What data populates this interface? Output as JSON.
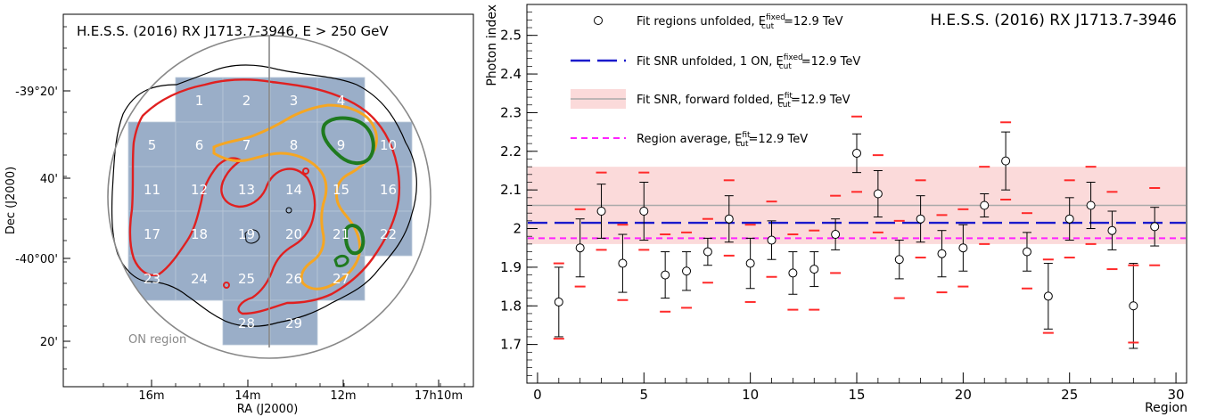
{
  "chart_data": [
    {
      "type": "heatmap",
      "title": "H.E.S.S. (2016) RX J1713.7-3946, E > 250 GeV",
      "xlabel": "RA (J2000)",
      "ylabel": "Dec (J2000)",
      "x_ticks": [
        "16m",
        "14m",
        "12m",
        "17h10m"
      ],
      "y_ticks": [
        "-39°20'",
        "40'",
        "-40°00'",
        "20'"
      ],
      "annotation": "ON region",
      "region_labels": [
        "1",
        "2",
        "3",
        "4",
        "5",
        "6",
        "7",
        "8",
        "9",
        "10",
        "11",
        "12",
        "13",
        "14",
        "15",
        "16",
        "17",
        "18",
        "19",
        "20",
        "21",
        "22",
        "23",
        "24",
        "25",
        "26",
        "27",
        "28",
        "29"
      ],
      "colors": {
        "regions": "#9aaec8",
        "red_contour": "#e02020",
        "orange_contour": "#f5a623",
        "green_contour": "#1f7a1f",
        "outer_contour": "#000000",
        "on_region": "#888888"
      }
    },
    {
      "type": "scatter",
      "title": "H.E.S.S. (2016) RX J1713.7-3946",
      "xlabel": "Region",
      "ylabel": "Photon index",
      "xlim": [
        -0.5,
        30.5
      ],
      "ylim": [
        1.6,
        2.58
      ],
      "x_ticks": [
        0,
        5,
        10,
        15,
        20,
        25,
        30
      ],
      "y_ticks": [
        1.7,
        1.8,
        1.9,
        2.0,
        2.1,
        2.2,
        2.3,
        2.4,
        2.5
      ],
      "y_tick_labels": [
        "1.7",
        "1.8",
        "1.9",
        "2",
        "2.1",
        "2.2",
        "2.3",
        "2.4",
        "2.5"
      ],
      "series": [
        {
          "name": "Fit regions unfolded, E_cut^fixed=12.9 TeV",
          "x": [
            1,
            2,
            3,
            4,
            5,
            6,
            7,
            8,
            9,
            10,
            11,
            12,
            13,
            14,
            15,
            16,
            17,
            18,
            19,
            20,
            21,
            22,
            23,
            24,
            25,
            26,
            27,
            28,
            29
          ],
          "y": [
            1.81,
            1.95,
            2.045,
            1.91,
            2.045,
            1.88,
            1.89,
            1.94,
            2.025,
            1.91,
            1.97,
            1.885,
            1.895,
            1.985,
            2.195,
            2.09,
            1.92,
            2.025,
            1.935,
            1.95,
            2.06,
            2.175,
            1.94,
            1.825,
            2.025,
            2.06,
            1.995,
            1.8,
            2.005
          ],
          "err_low": [
            0.09,
            0.075,
            0.07,
            0.075,
            0.075,
            0.06,
            0.05,
            0.035,
            0.06,
            0.065,
            0.05,
            0.055,
            0.045,
            0.04,
            0.05,
            0.06,
            0.05,
            0.06,
            0.06,
            0.06,
            0.03,
            0.075,
            0.05,
            0.085,
            0.055,
            0.06,
            0.05,
            0.11,
            0.05
          ],
          "err_high": [
            0.09,
            0.075,
            0.07,
            0.075,
            0.075,
            0.06,
            0.05,
            0.035,
            0.06,
            0.065,
            0.05,
            0.055,
            0.045,
            0.04,
            0.05,
            0.06,
            0.05,
            0.06,
            0.06,
            0.06,
            0.03,
            0.075,
            0.05,
            0.085,
            0.055,
            0.06,
            0.05,
            0.11,
            0.05
          ],
          "sys_low": [
            1.715,
            1.85,
            1.945,
            1.815,
            1.945,
            1.785,
            1.795,
            1.86,
            1.93,
            1.81,
            1.875,
            1.79,
            1.79,
            1.885,
            2.095,
            1.99,
            1.82,
            1.925,
            1.835,
            1.85,
            1.96,
            2.075,
            1.845,
            1.73,
            1.925,
            1.96,
            1.895,
            1.705,
            1.905
          ],
          "sys_high": [
            1.91,
            2.05,
            2.145,
            2.01,
            2.145,
            1.985,
            1.99,
            2.025,
            2.125,
            2.01,
            2.07,
            1.985,
            1.995,
            2.085,
            2.29,
            2.19,
            2.02,
            2.125,
            2.035,
            2.05,
            2.16,
            2.275,
            2.04,
            1.92,
            2.125,
            2.16,
            2.095,
            1.905,
            2.105
          ]
        },
        {
          "name": "Fit SNR unfolded, 1 ON, E_cut^fixed=12.9 TeV",
          "y": 2.015
        },
        {
          "name": "Fit SNR, forward folded, E_cut^fit=12.9 TeV",
          "y": 2.06,
          "band": [
            1.96,
            2.16
          ]
        },
        {
          "name": "Region average, E_cut^fit=12.9 TeV",
          "y": 1.975
        }
      ],
      "legend": {
        "placement": "top-left",
        "entries": [
          {
            "pre": "Fit regions unfolded, E",
            "sub": "cut",
            "sup": "fixed",
            "post": "=12.9 TeV"
          },
          {
            "pre": "Fit SNR unfolded, 1 ON, E",
            "sub": "cut",
            "sup": "fixed",
            "post": "=12.9 TeV"
          },
          {
            "pre": "Fit SNR, forward folded, E",
            "sub": "cut",
            "sup": "fit",
            "post": "=12.9 TeV"
          },
          {
            "pre": "Region average, E",
            "sub": "cut",
            "sup": "fit",
            "post": "=12.9 TeV"
          }
        ]
      },
      "colors": {
        "points": "#000000",
        "sys": "#ff2a2a",
        "unfolded_line": "#1a1acc",
        "forward_line": "#aaaaaa",
        "band": "#fbdada",
        "average_line": "#ff22ff"
      }
    }
  ]
}
